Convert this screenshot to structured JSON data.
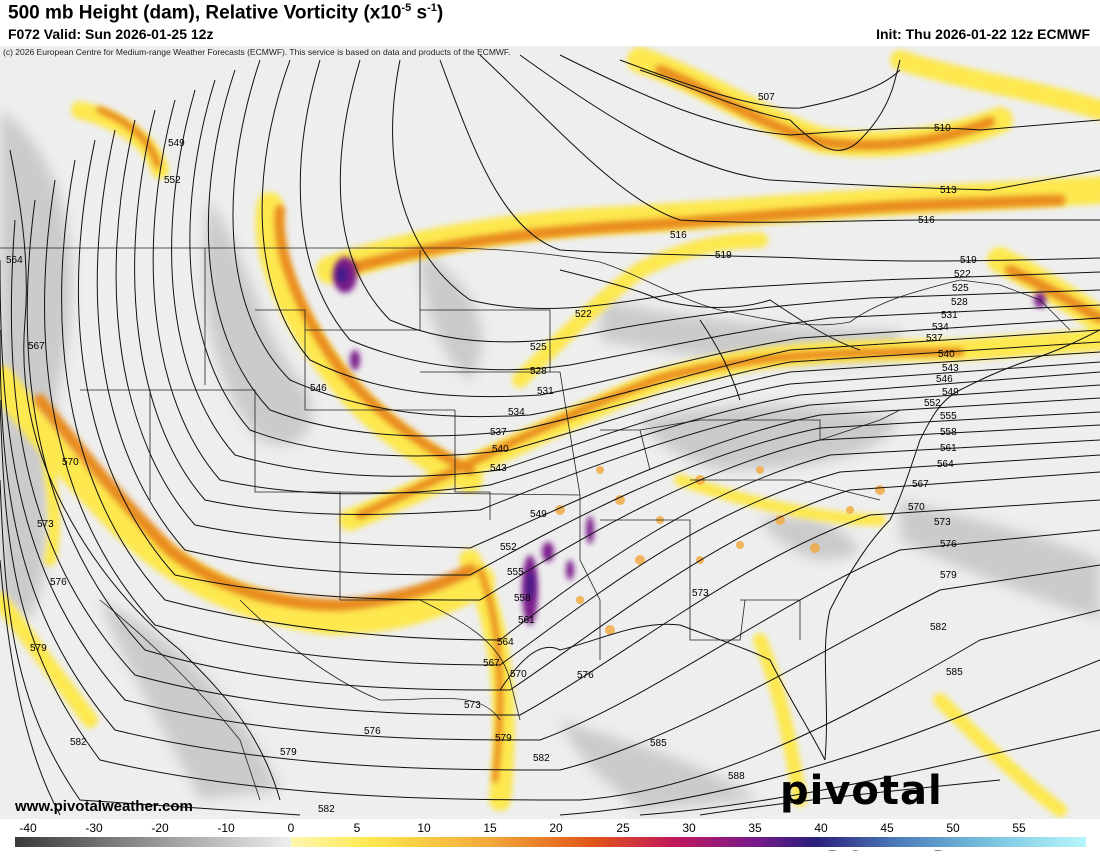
{
  "header": {
    "title_main": "500 mb Height (dam), Relative Vorticity (x10",
    "title_exp": "-5",
    "title_unit": " s",
    "title_exp2": "-1",
    "title_close": ")",
    "valid": "F072 Valid: Sun 2026-01-25 12z",
    "init": "Init: Thu 2026-01-22 12z ECMWF",
    "copyright": "(c) 2026 European Centre for Medium-range Weather Forecasts (ECMWF). This service is based on data and products of the ECMWF."
  },
  "footer": {
    "site": "www.pivotalweather.com",
    "logo": "pivotal weather"
  },
  "colorbar": {
    "ticks": [
      "-40",
      "-30",
      "-20",
      "-10",
      "0",
      "5",
      "10",
      "15",
      "20",
      "25",
      "30",
      "35",
      "40",
      "45",
      "50",
      "55"
    ]
  },
  "contours": [
    "507",
    "510",
    "513",
    "516",
    "519",
    "522",
    "525",
    "528",
    "531",
    "534",
    "537",
    "540",
    "543",
    "546",
    "549",
    "552",
    "555",
    "558",
    "561",
    "564",
    "567",
    "570",
    "573",
    "576",
    "579",
    "582",
    "585",
    "588"
  ],
  "colors": {
    "neg_dark": "#3a3a3a",
    "neg_light": "#e6e6e6",
    "pos_yellow": "#fde84f",
    "pos_orange": "#e88a1a",
    "pos_purple": "#7a1a8a",
    "pos_blue": "#5aa7d6",
    "pos_cyan": "#9ff0f8"
  }
}
